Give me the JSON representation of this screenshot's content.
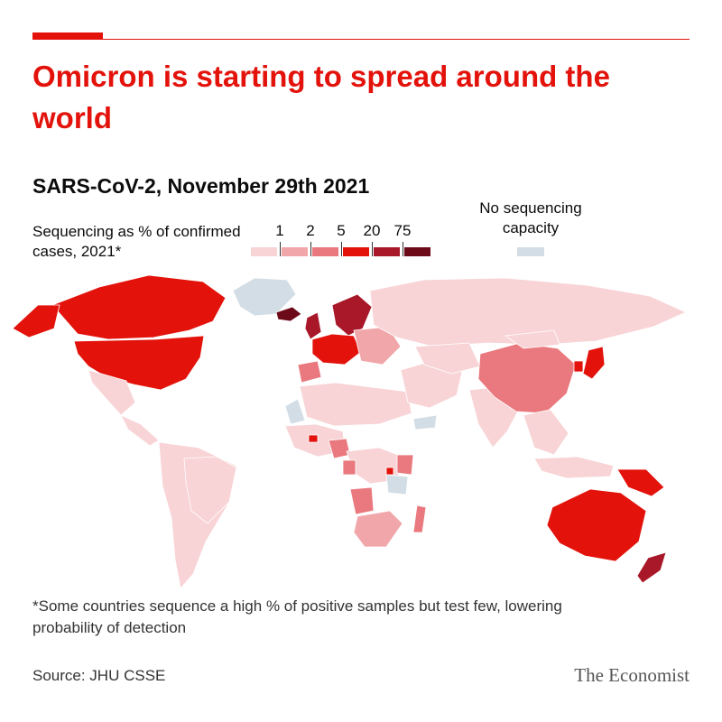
{
  "header": {
    "title": "Omicron is starting to spread around the world",
    "subtitle": "SARS-CoV-2, November 29th 2021"
  },
  "legend": {
    "label": "Sequencing as % of confirmed cases, 2021*",
    "ticks": [
      "1",
      "2",
      "5",
      "20",
      "75"
    ],
    "colors": [
      "#f8d4d6",
      "#f1a6aa",
      "#e9797e",
      "#e3120b",
      "#a81829",
      "#6d0a1a"
    ],
    "no_capacity_label": "No sequencing capacity",
    "no_capacity_color": "#d3dde5"
  },
  "map_data": {
    "type": "choropleth",
    "regions": [
      {
        "name": "Canada",
        "bin": 4
      },
      {
        "name": "United States",
        "bin": 4
      },
      {
        "name": "Alaska",
        "bin": 4
      },
      {
        "name": "Greenland",
        "bin": "none"
      },
      {
        "name": "Iceland",
        "bin": 6
      },
      {
        "name": "Mexico",
        "bin": 1
      },
      {
        "name": "Central America",
        "bin": 1
      },
      {
        "name": "South America",
        "bin": 1
      },
      {
        "name": "Brazil",
        "bin": 1
      },
      {
        "name": "UK",
        "bin": 5
      },
      {
        "name": "Scandinavia",
        "bin": 5
      },
      {
        "name": "Western Europe",
        "bin": 4
      },
      {
        "name": "Spain",
        "bin": 3
      },
      {
        "name": "Eastern Europe",
        "bin": 2
      },
      {
        "name": "Russia",
        "bin": 1
      },
      {
        "name": "North Africa",
        "bin": 1
      },
      {
        "name": "Western Sahara",
        "bin": "none"
      },
      {
        "name": "West Africa",
        "bin": 1
      },
      {
        "name": "Gambia",
        "bin": 4
      },
      {
        "name": "Nigeria",
        "bin": 3
      },
      {
        "name": "Central Africa",
        "bin": 1
      },
      {
        "name": "Gabon",
        "bin": 3
      },
      {
        "name": "Angola",
        "bin": 3
      },
      {
        "name": "Kenya",
        "bin": 3
      },
      {
        "name": "Rwanda",
        "bin": 4
      },
      {
        "name": "Tanzania",
        "bin": "none"
      },
      {
        "name": "Southern Africa",
        "bin": 2
      },
      {
        "name": "Madagascar",
        "bin": 3
      },
      {
        "name": "Middle East",
        "bin": 1
      },
      {
        "name": "Yemen",
        "bin": "none"
      },
      {
        "name": "India",
        "bin": 1
      },
      {
        "name": "Central Asia",
        "bin": 1
      },
      {
        "name": "China",
        "bin": 3
      },
      {
        "name": "Mongolia",
        "bin": 1
      },
      {
        "name": "Japan",
        "bin": 4
      },
      {
        "name": "South Korea",
        "bin": 4
      },
      {
        "name": "Southeast Asia",
        "bin": 1
      },
      {
        "name": "Indonesia",
        "bin": 1
      },
      {
        "name": "Papua New Guinea",
        "bin": 4
      },
      {
        "name": "Australia",
        "bin": 4
      },
      {
        "name": "New Zealand",
        "bin": 5
      }
    ]
  },
  "footnote": "*Some countries sequence a high % of positive samples but test few, lowering probability of detection",
  "source": "Source: JHU CSSE",
  "brand": "The Economist"
}
